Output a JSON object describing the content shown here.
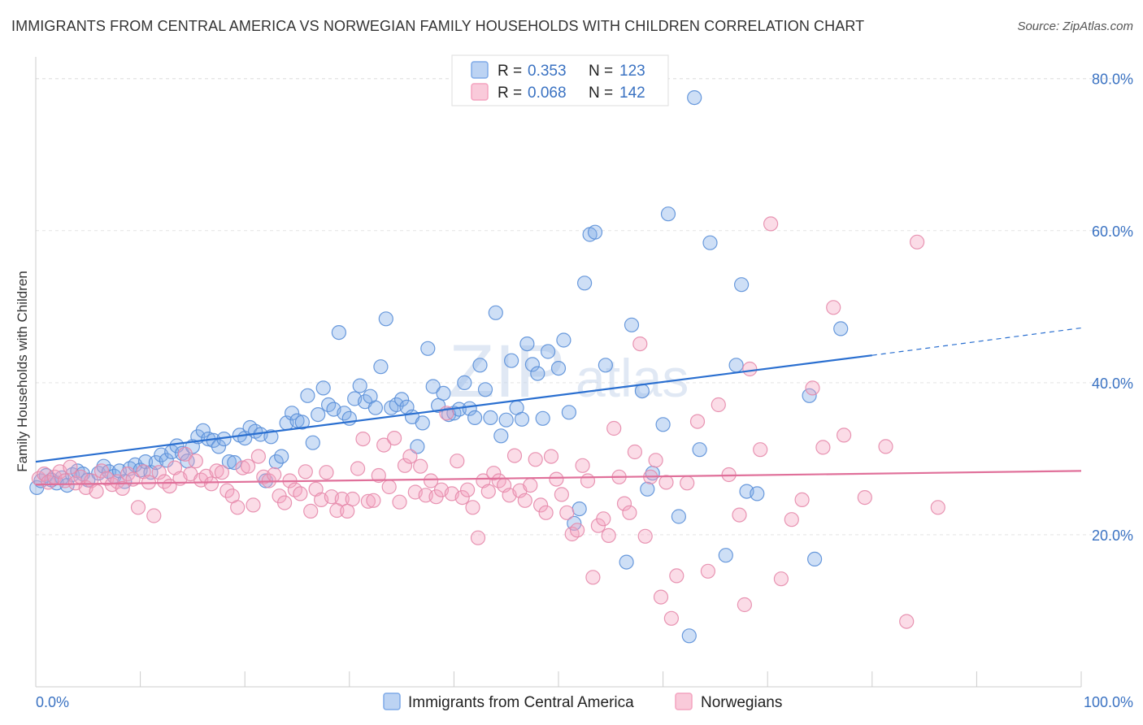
{
  "title": "IMMIGRANTS FROM CENTRAL AMERICA VS NORWEGIAN FAMILY HOUSEHOLDS WITH CHILDREN CORRELATION CHART",
  "source": "Source: ZipAtlas.com",
  "watermark": {
    "zip": "ZIP",
    "atlas": "atlas"
  },
  "chart_data": {
    "type": "scatter",
    "title": "IMMIGRANTS FROM CENTRAL AMERICA VS NORWEGIAN FAMILY HOUSEHOLDS WITH CHILDREN CORRELATION CHART",
    "xlabel": "",
    "ylabel": "Family Households with Children",
    "xlim": [
      0,
      100
    ],
    "ylim": [
      0,
      82
    ],
    "x_tick_labels": {
      "left": "0.0%",
      "right": "100.0%"
    },
    "y_ticks": [
      20,
      40,
      60,
      80
    ],
    "y_tick_labels": [
      "20.0%",
      "40.0%",
      "60.0%",
      "80.0%"
    ],
    "grid": "horizontal dashed",
    "legend": [
      {
        "r_label": "R =",
        "r_value": "0.353",
        "n_label": "N =",
        "n_value": "123",
        "color": "#7eaae8"
      },
      {
        "r_label": "R =",
        "r_value": "0.068",
        "n_label": "N =",
        "n_value": "142",
        "color": "#f4a3bf"
      }
    ],
    "series": [
      {
        "name": "Immigrants from Central America",
        "color": "#7eaae8",
        "stroke": "#5a8fd8",
        "trend_color": "#2a6fd0",
        "trend": {
          "x0": 0,
          "y0": 29.6,
          "x1": 80,
          "y1": 43.6,
          "dash_x1": 100,
          "dash_y1": 47.2
        },
        "points": [
          [
            0.1,
            26.2
          ],
          [
            0.5,
            27.1
          ],
          [
            1.0,
            27.8
          ],
          [
            1.5,
            27.2
          ],
          [
            2.0,
            26.8
          ],
          [
            2.5,
            27.5
          ],
          [
            3.0,
            26.5
          ],
          [
            3.5,
            27.9
          ],
          [
            4.0,
            28.4
          ],
          [
            4.5,
            28.0
          ],
          [
            5.0,
            27.2
          ],
          [
            6.0,
            28.1
          ],
          [
            6.5,
            29.0
          ],
          [
            7.0,
            28.3
          ],
          [
            7.5,
            27.7
          ],
          [
            8.0,
            28.4
          ],
          [
            8.5,
            27.0
          ],
          [
            9.0,
            28.7
          ],
          [
            9.5,
            29.2
          ],
          [
            10.0,
            28.5
          ],
          [
            10.5,
            29.6
          ],
          [
            11.0,
            28.2
          ],
          [
            11.5,
            29.5
          ],
          [
            12.0,
            30.5
          ],
          [
            12.5,
            29.8
          ],
          [
            13.0,
            30.9
          ],
          [
            13.5,
            31.7
          ],
          [
            14.0,
            30.7
          ],
          [
            14.5,
            29.7
          ],
          [
            15.0,
            31.6
          ],
          [
            15.5,
            32.9
          ],
          [
            16.0,
            33.7
          ],
          [
            16.5,
            32.6
          ],
          [
            17.0,
            32.4
          ],
          [
            17.5,
            31.6
          ],
          [
            18.0,
            32.6
          ],
          [
            18.5,
            29.6
          ],
          [
            19.0,
            29.5
          ],
          [
            19.5,
            33.1
          ],
          [
            20.0,
            32.7
          ],
          [
            20.5,
            34.1
          ],
          [
            21.0,
            33.6
          ],
          [
            21.5,
            33.2
          ],
          [
            22.0,
            27.1
          ],
          [
            22.5,
            32.9
          ],
          [
            23.0,
            29.6
          ],
          [
            23.5,
            30.3
          ],
          [
            24.0,
            34.7
          ],
          [
            24.5,
            36.0
          ],
          [
            25.0,
            35.0
          ],
          [
            25.5,
            34.8
          ],
          [
            26.0,
            38.3
          ],
          [
            26.5,
            32.1
          ],
          [
            27.0,
            35.8
          ],
          [
            27.5,
            39.3
          ],
          [
            28.0,
            37.1
          ],
          [
            28.5,
            36.5
          ],
          [
            29.0,
            46.6
          ],
          [
            29.5,
            36.0
          ],
          [
            30.0,
            35.3
          ],
          [
            30.5,
            37.9
          ],
          [
            31.0,
            39.6
          ],
          [
            31.5,
            37.5
          ],
          [
            32.0,
            38.2
          ],
          [
            32.5,
            36.7
          ],
          [
            33.0,
            42.1
          ],
          [
            33.5,
            48.4
          ],
          [
            34.0,
            36.7
          ],
          [
            34.5,
            37.1
          ],
          [
            35.0,
            37.8
          ],
          [
            35.5,
            36.8
          ],
          [
            36.0,
            35.5
          ],
          [
            36.5,
            31.6
          ],
          [
            37.0,
            34.7
          ],
          [
            37.5,
            44.5
          ],
          [
            38.0,
            39.5
          ],
          [
            38.5,
            37.0
          ],
          [
            39.0,
            38.6
          ],
          [
            39.5,
            35.8
          ],
          [
            40.0,
            36.0
          ],
          [
            40.5,
            36.5
          ],
          [
            41.0,
            40.0
          ],
          [
            41.5,
            36.6
          ],
          [
            42.0,
            35.4
          ],
          [
            42.5,
            42.3
          ],
          [
            43.0,
            39.1
          ],
          [
            43.5,
            35.4
          ],
          [
            44.0,
            49.2
          ],
          [
            44.5,
            33.0
          ],
          [
            45.0,
            35.1
          ],
          [
            45.5,
            42.9
          ],
          [
            46.0,
            36.7
          ],
          [
            46.5,
            35.2
          ],
          [
            47.0,
            45.1
          ],
          [
            47.5,
            42.4
          ],
          [
            48.0,
            41.2
          ],
          [
            48.5,
            35.3
          ],
          [
            49.0,
            44.1
          ],
          [
            50.0,
            41.9
          ],
          [
            50.5,
            45.6
          ],
          [
            51.0,
            36.1
          ],
          [
            51.5,
            21.5
          ],
          [
            52.0,
            23.4
          ],
          [
            52.5,
            53.1
          ],
          [
            53.0,
            59.5
          ],
          [
            53.5,
            59.8
          ],
          [
            54.5,
            42.3
          ],
          [
            56.5,
            16.4
          ],
          [
            57.0,
            47.6
          ],
          [
            58.0,
            38.9
          ],
          [
            58.5,
            26.0
          ],
          [
            59.0,
            28.1
          ],
          [
            60.0,
            34.5
          ],
          [
            60.5,
            62.2
          ],
          [
            61.5,
            22.4
          ],
          [
            62.5,
            6.7
          ],
          [
            63.0,
            77.5
          ],
          [
            63.5,
            31.2
          ],
          [
            64.5,
            58.4
          ],
          [
            66.0,
            17.3
          ],
          [
            67.0,
            42.3
          ],
          [
            67.5,
            52.9
          ],
          [
            68.0,
            25.7
          ],
          [
            69.0,
            25.4
          ],
          [
            74.0,
            38.3
          ],
          [
            74.5,
            16.8
          ],
          [
            77.0,
            47.1
          ]
        ]
      },
      {
        "name": "Norwegians",
        "color": "#f4a3bf",
        "stroke": "#e58aab",
        "trend_color": "#e0709a",
        "trend": {
          "x0": 0,
          "y0": 26.6,
          "x1": 100,
          "y1": 28.4
        },
        "points": [
          [
            0.3,
            27.4
          ],
          [
            0.8,
            28.0
          ],
          [
            1.2,
            26.9
          ],
          [
            1.8,
            27.6
          ],
          [
            2.3,
            28.3
          ],
          [
            2.8,
            27.1
          ],
          [
            3.3,
            28.9
          ],
          [
            3.8,
            26.8
          ],
          [
            4.3,
            27.6
          ],
          [
            4.8,
            26.2
          ],
          [
            5.3,
            27.1
          ],
          [
            5.8,
            25.7
          ],
          [
            6.3,
            28.4
          ],
          [
            6.8,
            27.4
          ],
          [
            7.3,
            26.6
          ],
          [
            7.8,
            27.0
          ],
          [
            8.3,
            26.1
          ],
          [
            8.8,
            28.0
          ],
          [
            9.3,
            27.3
          ],
          [
            9.8,
            23.6
          ],
          [
            10.3,
            28.3
          ],
          [
            10.8,
            26.9
          ],
          [
            11.3,
            22.5
          ],
          [
            11.8,
            28.2
          ],
          [
            12.3,
            27.0
          ],
          [
            12.8,
            26.4
          ],
          [
            13.3,
            28.8
          ],
          [
            13.8,
            27.4
          ],
          [
            14.3,
            30.6
          ],
          [
            14.8,
            28.0
          ],
          [
            15.3,
            29.7
          ],
          [
            15.8,
            27.2
          ],
          [
            16.3,
            27.7
          ],
          [
            16.8,
            26.7
          ],
          [
            17.3,
            28.4
          ],
          [
            17.8,
            28.2
          ],
          [
            18.3,
            25.8
          ],
          [
            18.8,
            25.1
          ],
          [
            19.3,
            23.6
          ],
          [
            19.8,
            28.8
          ],
          [
            20.3,
            29.0
          ],
          [
            20.8,
            23.9
          ],
          [
            21.3,
            30.3
          ],
          [
            21.8,
            27.6
          ],
          [
            22.3,
            27.1
          ],
          [
            22.8,
            27.9
          ],
          [
            23.3,
            25.1
          ],
          [
            23.8,
            24.2
          ],
          [
            24.3,
            27.1
          ],
          [
            24.8,
            25.9
          ],
          [
            25.3,
            25.4
          ],
          [
            25.8,
            28.3
          ],
          [
            26.3,
            23.1
          ],
          [
            26.8,
            26.0
          ],
          [
            27.3,
            24.6
          ],
          [
            27.8,
            28.2
          ],
          [
            28.3,
            25.0
          ],
          [
            28.8,
            23.2
          ],
          [
            29.3,
            24.7
          ],
          [
            29.8,
            23.1
          ],
          [
            30.3,
            24.7
          ],
          [
            30.8,
            28.7
          ],
          [
            31.3,
            32.6
          ],
          [
            31.8,
            24.4
          ],
          [
            32.3,
            24.5
          ],
          [
            32.8,
            27.8
          ],
          [
            33.3,
            31.8
          ],
          [
            33.8,
            26.3
          ],
          [
            34.3,
            32.7
          ],
          [
            34.8,
            24.3
          ],
          [
            35.3,
            29.1
          ],
          [
            35.8,
            30.3
          ],
          [
            36.3,
            25.6
          ],
          [
            36.8,
            29.0
          ],
          [
            37.3,
            25.2
          ],
          [
            37.8,
            27.1
          ],
          [
            38.3,
            25.0
          ],
          [
            38.8,
            25.9
          ],
          [
            39.3,
            36.0
          ],
          [
            39.8,
            25.4
          ],
          [
            40.3,
            29.7
          ],
          [
            40.8,
            24.9
          ],
          [
            41.3,
            25.9
          ],
          [
            41.8,
            23.6
          ],
          [
            42.3,
            19.6
          ],
          [
            42.8,
            27.1
          ],
          [
            43.3,
            25.7
          ],
          [
            43.8,
            28.1
          ],
          [
            44.3,
            27.1
          ],
          [
            44.8,
            26.5
          ],
          [
            45.3,
            25.2
          ],
          [
            45.8,
            30.4
          ],
          [
            46.3,
            25.8
          ],
          [
            46.8,
            24.5
          ],
          [
            47.3,
            26.5
          ],
          [
            47.8,
            29.9
          ],
          [
            48.3,
            23.9
          ],
          [
            48.8,
            22.9
          ],
          [
            49.3,
            30.3
          ],
          [
            49.8,
            27.3
          ],
          [
            50.3,
            25.3
          ],
          [
            50.8,
            22.9
          ],
          [
            51.3,
            20.1
          ],
          [
            51.8,
            20.6
          ],
          [
            52.3,
            29.1
          ],
          [
            52.8,
            27.1
          ],
          [
            53.3,
            14.4
          ],
          [
            53.8,
            21.2
          ],
          [
            54.3,
            22.1
          ],
          [
            54.8,
            19.9
          ],
          [
            55.3,
            34.0
          ],
          [
            55.8,
            27.6
          ],
          [
            56.3,
            24.1
          ],
          [
            56.8,
            22.9
          ],
          [
            57.3,
            30.9
          ],
          [
            57.8,
            45.1
          ],
          [
            58.3,
            19.8
          ],
          [
            58.8,
            27.6
          ],
          [
            59.3,
            29.8
          ],
          [
            59.8,
            11.8
          ],
          [
            60.3,
            26.9
          ],
          [
            60.8,
            9.0
          ],
          [
            61.3,
            14.6
          ],
          [
            62.3,
            26.8
          ],
          [
            63.3,
            34.9
          ],
          [
            64.3,
            15.2
          ],
          [
            65.3,
            37.1
          ],
          [
            66.3,
            27.9
          ],
          [
            67.3,
            22.6
          ],
          [
            67.8,
            10.8
          ],
          [
            68.3,
            41.8
          ],
          [
            69.3,
            31.2
          ],
          [
            70.3,
            60.9
          ],
          [
            71.3,
            14.2
          ],
          [
            72.3,
            22.0
          ],
          [
            73.3,
            24.6
          ],
          [
            74.3,
            39.3
          ],
          [
            75.3,
            31.5
          ],
          [
            76.3,
            49.9
          ],
          [
            77.3,
            33.1
          ],
          [
            79.3,
            24.9
          ],
          [
            81.3,
            31.6
          ],
          [
            83.3,
            8.6
          ],
          [
            84.3,
            58.5
          ],
          [
            86.3,
            23.6
          ]
        ]
      }
    ]
  },
  "bottom_legend": [
    {
      "label": "Immigrants from Central America",
      "color": "#7eaae8"
    },
    {
      "label": "Norwegians",
      "color": "#f4a3bf"
    }
  ]
}
